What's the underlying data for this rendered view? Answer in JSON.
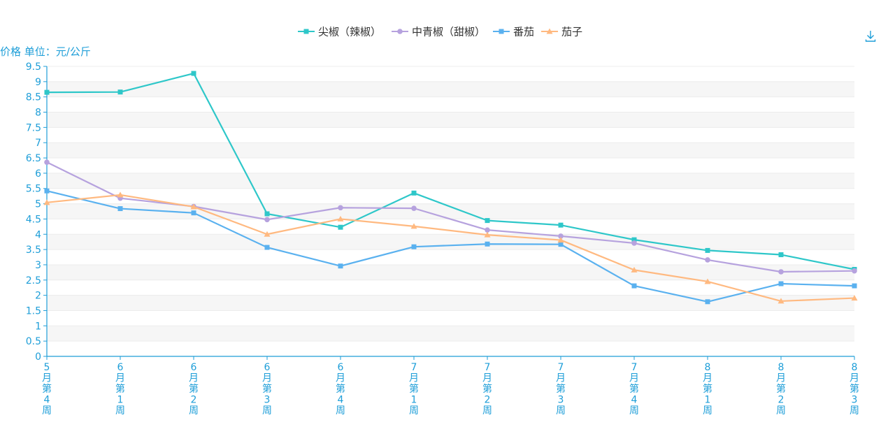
{
  "toolbar": {
    "download_icon": "download-icon"
  },
  "colors": {
    "axis": "#1e9ed8",
    "stripe": "#f6f6f6",
    "gridline": "#ececec",
    "legend_text": "#333333"
  },
  "chart_data": {
    "type": "line",
    "ylabel": "价格 单位：元/公斤",
    "ylim": [
      0,
      9.5
    ],
    "ytick_step": 0.5,
    "categories": [
      "5月第4周",
      "6月第1周",
      "6月第2周",
      "6月第3周",
      "6月第4周",
      "7月第1周",
      "7月第2周",
      "7月第3周",
      "7月第4周",
      "8月第1周",
      "8月第2周",
      "8月第3周"
    ],
    "grid": true,
    "legend_position": "top-center",
    "series": [
      {
        "name": "尖椒（辣椒）",
        "color": "#2ec7c9",
        "marker": "square",
        "values": [
          8.65,
          8.66,
          9.27,
          4.67,
          4.23,
          5.35,
          4.45,
          4.3,
          3.82,
          3.47,
          3.33,
          2.85
        ]
      },
      {
        "name": "中青椒（甜椒）",
        "color": "#b6a2de",
        "marker": "circle",
        "values": [
          6.36,
          5.18,
          4.91,
          4.48,
          4.87,
          4.85,
          4.14,
          3.94,
          3.71,
          3.16,
          2.77,
          2.8
        ]
      },
      {
        "name": "番茄",
        "color": "#5ab1ef",
        "marker": "square",
        "values": [
          5.42,
          4.84,
          4.7,
          3.57,
          2.96,
          3.59,
          3.68,
          3.67,
          2.31,
          1.79,
          2.38,
          2.31
        ]
      },
      {
        "name": "茄子",
        "color": "#ffb980",
        "marker": "triangle",
        "values": [
          5.04,
          5.29,
          4.9,
          4.0,
          4.5,
          4.26,
          3.98,
          3.81,
          2.83,
          2.45,
          1.81,
          1.91
        ]
      }
    ]
  }
}
